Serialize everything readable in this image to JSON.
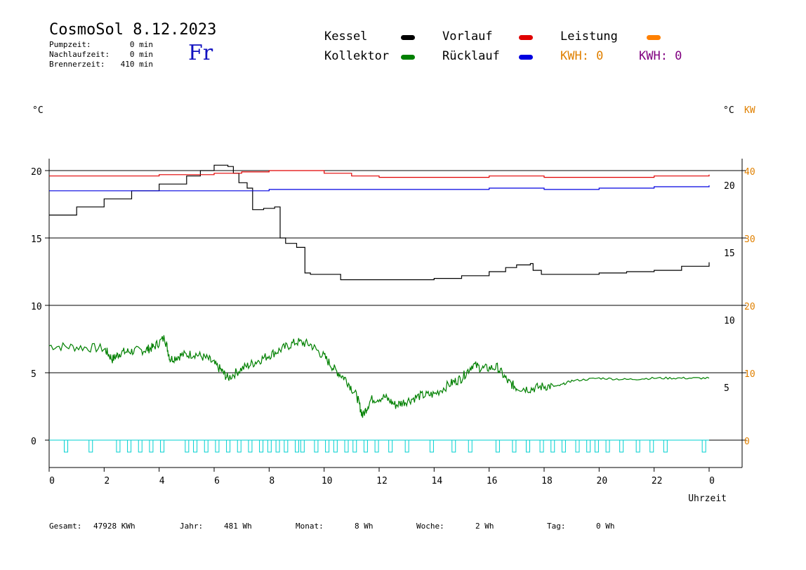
{
  "header": {
    "title": "CosmoSol 8.12.2023",
    "day": "Fr",
    "pump_label": "Pumpzeit:",
    "pump_value": "0 min",
    "after_label": "Nachlaufzeit:",
    "after_value": "0 min",
    "burner_label": "Brennerzeit:",
    "burner_value": "410 min"
  },
  "legend": {
    "kessel": "Kessel",
    "kollektor": "Kollektor",
    "vorlauf": "Vorlauf",
    "ruecklauf": "Rücklauf",
    "leistung": "Leistung",
    "kwh1": "KWH: 0",
    "kwh2": "KWH: 0"
  },
  "units": {
    "left": "°C",
    "right_c": "°C",
    "right_kw": "KW"
  },
  "footer": {
    "gesamt_label": "Gesamt:",
    "gesamt_value": "47928 KWh",
    "jahr_label": "Jahr:",
    "jahr_value": "481 Wh",
    "monat_label": "Monat:",
    "monat_value": "8 Wh",
    "woche_label": "Woche:",
    "woche_value": "2 Wh",
    "tag_label": "Tag:",
    "tag_value": "0 Wh"
  },
  "colors": {
    "kessel": "#000000",
    "kollektor": "#008000",
    "vorlauf": "#e00000",
    "ruecklauf": "#0000e0",
    "leistung": "#ff8000",
    "kwh2": "#800080",
    "pump": "#00d0d0",
    "kw_axis": "#e08000"
  },
  "chart_data": {
    "type": "line",
    "xlabel": "Uhrzeit",
    "x_ticks": [
      "0",
      "2",
      "4",
      "6",
      "8",
      "10",
      "12",
      "14",
      "16",
      "18",
      "20",
      "22",
      "0"
    ],
    "xlim": [
      0,
      24
    ],
    "ylim": [
      0,
      20
    ],
    "y_ticks_left": [
      "0",
      "5",
      "10",
      "15",
      "20"
    ],
    "y_ticks_right_c": [
      "5",
      "10",
      "15",
      "20"
    ],
    "y_ticks_right_kw": [
      "0",
      "10",
      "20",
      "30",
      "40"
    ],
    "grid": true,
    "series": [
      {
        "name": "Kessel",
        "x": [
          0,
          1,
          2,
          3,
          4,
          5,
          5.5,
          6,
          6.5,
          6.7,
          6.9,
          7.2,
          7.4,
          7.8,
          8.2,
          8.4,
          8.6,
          9.0,
          9.3,
          9.5,
          10.0,
          10.4,
          10.6,
          11,
          12,
          13,
          14,
          15,
          16,
          16.6,
          17.0,
          17.5,
          17.6,
          17.9,
          19,
          20,
          21,
          22,
          23,
          24
        ],
        "y": [
          16.7,
          17.3,
          17.9,
          18.5,
          19.0,
          19.6,
          20.0,
          20.4,
          20.3,
          19.8,
          19.1,
          18.7,
          17.1,
          17.2,
          17.3,
          15.0,
          14.6,
          14.3,
          12.4,
          12.3,
          12.3,
          12.3,
          11.9,
          11.9,
          11.9,
          11.9,
          12.0,
          12.2,
          12.5,
          12.8,
          13.0,
          13.1,
          12.6,
          12.3,
          12.3,
          12.4,
          12.5,
          12.6,
          12.9,
          13.2
        ]
      },
      {
        "name": "Vorlauf",
        "x": [
          0,
          2,
          4,
          6,
          7,
          8,
          9,
          10,
          11,
          12,
          14,
          16,
          18,
          20,
          22,
          24
        ],
        "y": [
          19.6,
          19.6,
          19.7,
          19.8,
          19.9,
          20.0,
          20.0,
          19.8,
          19.6,
          19.5,
          19.5,
          19.6,
          19.5,
          19.5,
          19.6,
          19.7
        ]
      },
      {
        "name": "Rücklauf",
        "x": [
          0,
          4,
          8,
          12,
          16,
          18,
          20,
          22,
          24
        ],
        "y": [
          18.5,
          18.5,
          18.6,
          18.6,
          18.7,
          18.6,
          18.7,
          18.8,
          18.9
        ]
      },
      {
        "name": "Kollektor",
        "x": [
          0,
          1,
          2,
          2.3,
          2.6,
          3,
          3.5,
          3.8,
          4.2,
          4.4,
          4.8,
          5.3,
          5.8,
          6.2,
          6.5,
          7.0,
          7.5,
          8.0,
          8.5,
          9.0,
          9.5,
          10.0,
          10.4,
          10.8,
          11.2,
          11.4,
          11.7,
          12.2,
          12.6,
          13.0,
          13.5,
          14.0,
          14.6,
          15.0,
          15.4,
          15.8,
          16.3,
          16.7,
          17.0,
          17.5,
          18.0,
          18.5,
          19.0,
          20.0,
          21.0,
          22.0,
          23.0,
          24.0
        ],
        "y": [
          7.0,
          6.9,
          6.8,
          6.0,
          6.5,
          6.6,
          6.7,
          6.9,
          7.6,
          6.0,
          6.3,
          6.4,
          6.0,
          5.3,
          4.6,
          5.3,
          5.8,
          6.3,
          6.8,
          7.3,
          7.1,
          6.2,
          5.2,
          4.5,
          3.2,
          1.8,
          3.0,
          3.2,
          2.6,
          2.9,
          3.3,
          3.4,
          4.2,
          4.6,
          5.6,
          5.3,
          5.4,
          4.3,
          3.9,
          3.8,
          4.0,
          4.0,
          4.4,
          4.6,
          4.5,
          4.6,
          4.6,
          4.6
        ]
      }
    ],
    "pump_pulses": [
      0.6,
      1.5,
      2.5,
      2.9,
      3.3,
      3.7,
      4.1,
      5.0,
      5.3,
      5.7,
      6.1,
      6.5,
      6.9,
      7.3,
      7.7,
      8.0,
      8.3,
      8.6,
      9.0,
      9.2,
      9.7,
      10.1,
      10.4,
      10.8,
      11.1,
      11.5,
      11.9,
      12.4,
      13.0,
      13.9,
      14.7,
      15.3,
      16.3,
      16.9,
      17.4,
      17.9,
      18.3,
      18.7,
      19.2,
      19.6,
      19.9,
      20.3,
      20.8,
      21.4,
      21.9,
      22.4,
      23.8
    ]
  }
}
